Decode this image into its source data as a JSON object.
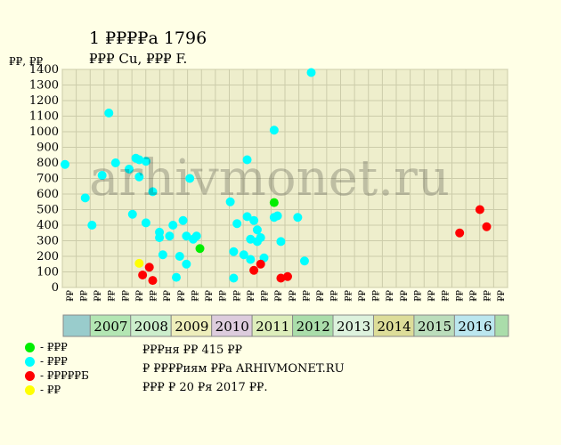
{
  "title": "1 ₽₽₽₽а 1796",
  "subtitle": "₽₽₽ Cu, ₽₽₽ F.",
  "ylabel": "₽₽, ₽₽",
  "watermark": "arhivmonet.ru",
  "legend": [
    {
      "label": "- ₽₽₽",
      "color": "#00ee00"
    },
    {
      "label": "- ₽₽₽",
      "color": "#00ffff"
    },
    {
      "label": "- ₽₽₽₽₽Б",
      "color": "#ff0000"
    },
    {
      "label": "- ₽₽",
      "color": "#ffff00"
    }
  ],
  "notes": {
    "line1": "₽₽₽ня ₽₽ 415 ₽₽",
    "line2": "₽ ₽₽₽₽иям ₽₽а ARHIVMONET.RU",
    "line3": "₽₽₽ ₽ 20 ₽я 2017 ₽₽."
  },
  "chart_data": {
    "type": "scatter",
    "ylim": [
      0,
      1400
    ],
    "yticks": [
      0,
      100,
      200,
      300,
      400,
      500,
      600,
      700,
      800,
      900,
      1000,
      1100,
      1200,
      1300,
      1400
    ],
    "x_unit": "month",
    "x_start": "2006-05",
    "x_end": "2016-12",
    "x_periods": [
      "₽₽",
      "₽₽",
      "₽₽",
      "₽₽",
      "₽₽",
      "₽₽",
      "₽₽",
      "₽₽",
      "₽₽",
      "₽₽",
      "₽₽",
      "₽₽",
      "₽₽",
      "₽₽",
      "₽₽",
      "₽₽",
      "₽₽",
      "₽₽",
      "₽₽",
      "₽₽",
      "₽₽",
      "₽₽",
      "₽₽",
      "₽₽",
      "₽₽",
      "₽₽",
      "₽₽",
      "₽₽",
      "₽₽",
      "₽₽",
      "₽₽",
      "₽₽"
    ],
    "years": [
      {
        "label": "",
        "from": "2006-05",
        "to": "2006-12",
        "color": "#99cccc"
      },
      {
        "label": "2007",
        "from": "2007-01",
        "to": "2007-12",
        "color": "#b3e6b3"
      },
      {
        "label": "2008",
        "from": "2008-01",
        "to": "2008-12",
        "color": "#cceecc"
      },
      {
        "label": "2009",
        "from": "2009-01",
        "to": "2009-12",
        "color": "#eeeebb"
      },
      {
        "label": "2010",
        "from": "2010-01",
        "to": "2010-12",
        "color": "#ddccdd"
      },
      {
        "label": "2011",
        "from": "2011-01",
        "to": "2011-12",
        "color": "#ddeebb"
      },
      {
        "label": "2012",
        "from": "2012-01",
        "to": "2012-12",
        "color": "#aaddaa"
      },
      {
        "label": "2013",
        "from": "2013-01",
        "to": "2013-12",
        "color": "#ddf2dd"
      },
      {
        "label": "2014",
        "from": "2014-01",
        "to": "2014-12",
        "color": "#dddd99"
      },
      {
        "label": "2015",
        "from": "2015-01",
        "to": "2015-12",
        "color": "#bbddbb"
      },
      {
        "label": "2016",
        "from": "2016-01",
        "to": "2016-12",
        "color": "#bbe6ee"
      },
      {
        "label": "",
        "from": "2017-01",
        "to": "2017-04",
        "color": "#aaddaa"
      }
    ],
    "series": [
      {
        "color": "#00ffff",
        "points": [
          [
            "2006-05",
            790
          ],
          [
            "2006-11",
            575
          ],
          [
            "2007-01",
            400
          ],
          [
            "2007-04",
            720
          ],
          [
            "2007-06",
            1120
          ],
          [
            "2007-08",
            800
          ],
          [
            "2007-12",
            760
          ],
          [
            "2008-01",
            470
          ],
          [
            "2008-02",
            830
          ],
          [
            "2008-03",
            710
          ],
          [
            "2008-03",
            820
          ],
          [
            "2008-05",
            810
          ],
          [
            "2008-05",
            415
          ],
          [
            "2008-07",
            615
          ],
          [
            "2008-09",
            320
          ],
          [
            "2008-09",
            355
          ],
          [
            "2008-10",
            210
          ],
          [
            "2008-12",
            330
          ],
          [
            "2009-01",
            400
          ],
          [
            "2009-02",
            65
          ],
          [
            "2009-03",
            200
          ],
          [
            "2009-04",
            430
          ],
          [
            "2009-05",
            150
          ],
          [
            "2009-05",
            330
          ],
          [
            "2009-06",
            700
          ],
          [
            "2009-07",
            310
          ],
          [
            "2009-08",
            330
          ],
          [
            "2010-06",
            550
          ],
          [
            "2010-07",
            230
          ],
          [
            "2010-07",
            60
          ],
          [
            "2010-08",
            410
          ],
          [
            "2010-10",
            210
          ],
          [
            "2010-11",
            820
          ],
          [
            "2010-11",
            455
          ],
          [
            "2010-12",
            180
          ],
          [
            "2010-12",
            310
          ],
          [
            "2011-01",
            430
          ],
          [
            "2011-02",
            370
          ],
          [
            "2011-02",
            295
          ],
          [
            "2011-03",
            320
          ],
          [
            "2011-04",
            190
          ],
          [
            "2011-07",
            1010
          ],
          [
            "2011-07",
            450
          ],
          [
            "2011-08",
            460
          ],
          [
            "2011-09",
            295
          ],
          [
            "2012-02",
            450
          ],
          [
            "2012-04",
            170
          ],
          [
            "2012-06",
            1380
          ]
        ]
      },
      {
        "color": "#ff0000",
        "points": [
          [
            "2008-04",
            80
          ],
          [
            "2008-06",
            130
          ],
          [
            "2008-07",
            45
          ],
          [
            "2011-01",
            110
          ],
          [
            "2011-03",
            150
          ],
          [
            "2011-09",
            60
          ],
          [
            "2011-11",
            70
          ],
          [
            "2016-02",
            350
          ],
          [
            "2016-08",
            500
          ],
          [
            "2016-10",
            390
          ]
        ]
      },
      {
        "color": "#00ee00",
        "points": [
          [
            "2009-09",
            250
          ],
          [
            "2011-07",
            545
          ]
        ]
      },
      {
        "color": "#ffff00",
        "points": [
          [
            "2008-03",
            155
          ]
        ]
      }
    ]
  }
}
